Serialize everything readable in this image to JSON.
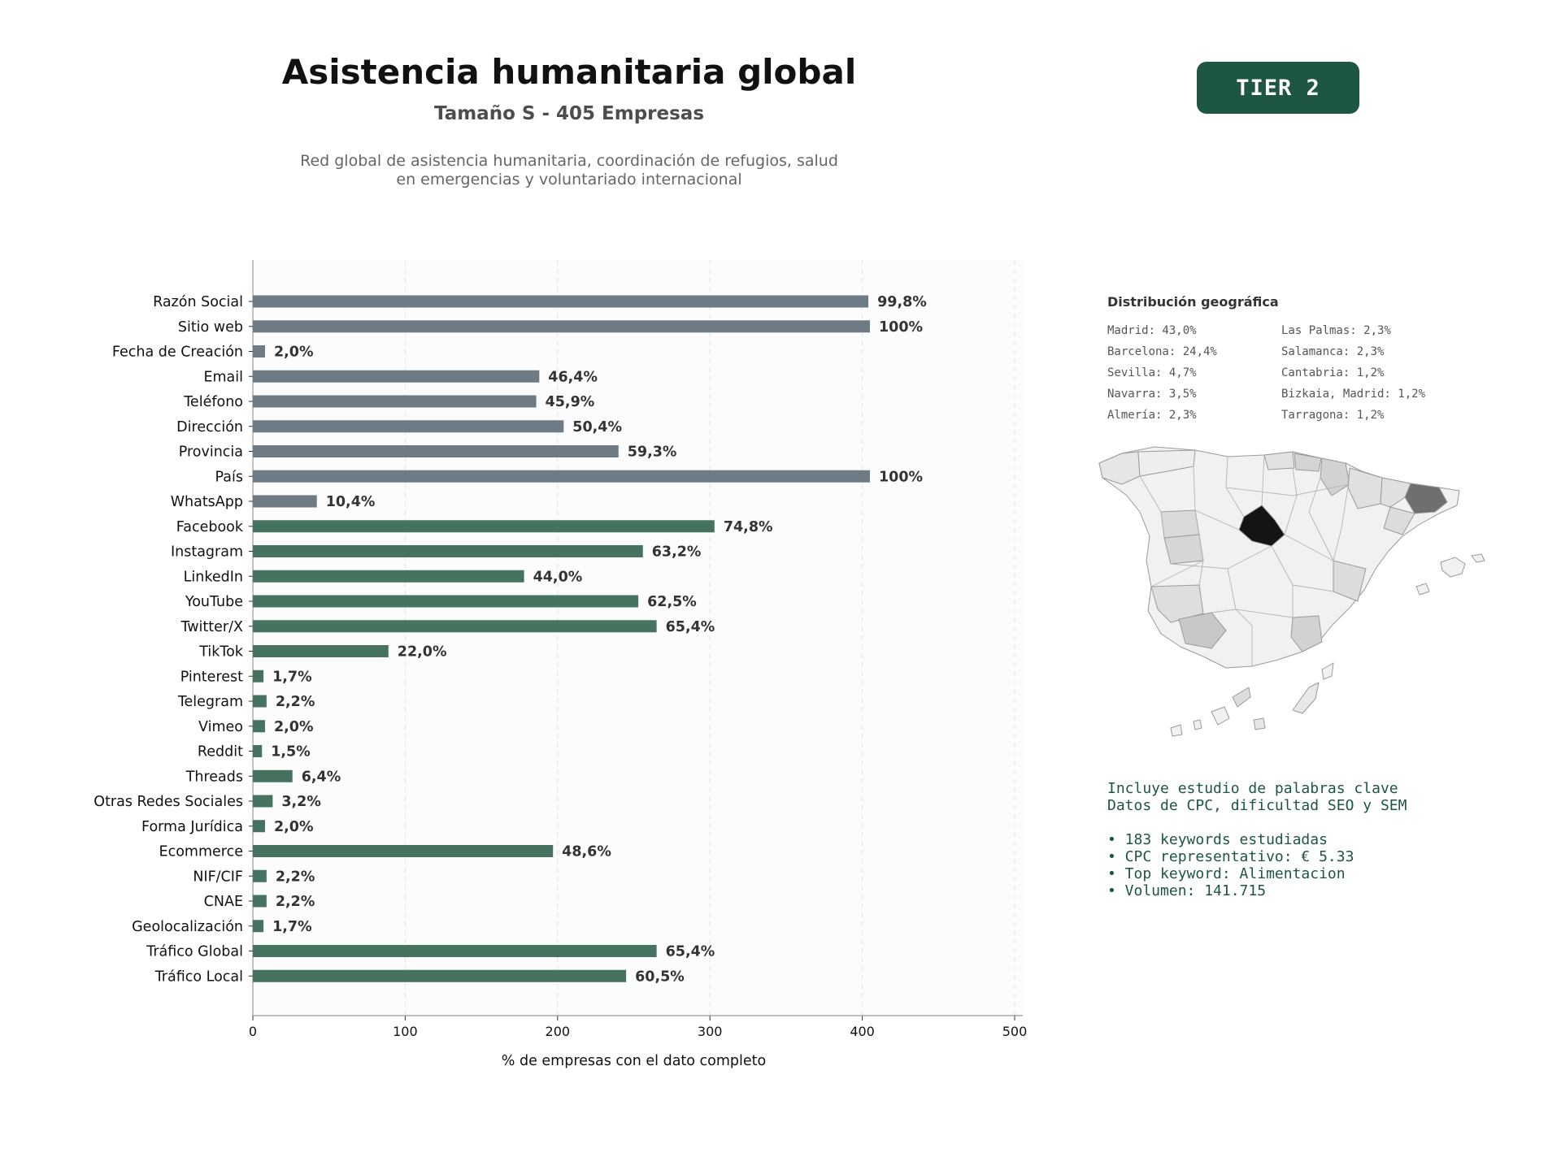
{
  "header": {
    "title": "Asistencia humanitaria global",
    "subtitle": "Tamaño S - 405 Empresas",
    "description_lines": [
      "Red global de asistencia humanitaria, coordinación de refugios, salud",
      "en emergencias y voluntariado internacional"
    ],
    "tier_label": "TIER 2"
  },
  "colors": {
    "gray_bar": "#6e7a84",
    "green_bar": "#46735f",
    "badge": "#1d5641",
    "keyword_text": "#1d5641"
  },
  "chart_data": {
    "type": "bar",
    "orientation": "horizontal",
    "xlabel": "% de empresas con el dato completo",
    "xlim": [
      0,
      500
    ],
    "xticks": [
      0,
      100,
      200,
      300,
      400,
      500
    ],
    "grid": "vertical dashed",
    "categories": [
      "Razón Social",
      "Sitio web",
      "Fecha de Creación",
      "Email",
      "Teléfono",
      "Dirección",
      "Provincia",
      "País",
      "WhatsApp",
      "Facebook",
      "Instagram",
      "LinkedIn",
      "YouTube",
      "Twitter/X",
      "TikTok",
      "Pinterest",
      "Telegram",
      "Vimeo",
      "Reddit",
      "Threads",
      "Otras Redes Sociales",
      "Forma Jurídica",
      "Ecommerce",
      "NIF/CIF",
      "CNAE",
      "Geolocalización",
      "Tráfico Global",
      "Tráfico Local"
    ],
    "values": [
      404,
      405,
      8,
      188,
      186,
      204,
      240,
      405,
      42,
      303,
      256,
      178,
      253,
      265,
      89,
      7,
      9,
      8,
      6,
      26,
      13,
      8,
      197,
      9,
      9,
      7,
      265,
      245
    ],
    "labels": [
      "99,8%",
      "100%",
      "2,0%",
      "46,4%",
      "45,9%",
      "50,4%",
      "59,3%",
      "100%",
      "10,4%",
      "74,8%",
      "63,2%",
      "44,0%",
      "62,5%",
      "65,4%",
      "22,0%",
      "1,7%",
      "2,2%",
      "2,0%",
      "1,5%",
      "6,4%",
      "3,2%",
      "2,0%",
      "48,6%",
      "2,2%",
      "2,2%",
      "1,7%",
      "65,4%",
      "60,5%"
    ],
    "bar_colors": [
      "gray",
      "gray",
      "gray",
      "gray",
      "gray",
      "gray",
      "gray",
      "gray",
      "gray",
      "green",
      "green",
      "green",
      "green",
      "green",
      "green",
      "green",
      "green",
      "green",
      "green",
      "green",
      "green",
      "green",
      "green",
      "green",
      "green",
      "green",
      "green",
      "green"
    ]
  },
  "geo": {
    "title": "Distribución geográfica",
    "items": [
      "Madrid: 43,0%",
      "Las Palmas: 2,3%",
      "Barcelona: 24,4%",
      "Salamanca: 2,3%",
      "Sevilla: 4,7%",
      "Cantabria: 1,2%",
      "Navarra: 3,5%",
      "Bizkaia, Madrid: 1,2%",
      "Almería: 2,3%",
      "Tarragona: 1,2%"
    ]
  },
  "keywords": {
    "line1": "Incluye estudio de palabras clave",
    "line2": "Datos de CPC, dificultad SEO y SEM",
    "bullets": [
      "• 183 keywords estudiadas",
      "• CPC representativo: € 5.33",
      "• Top keyword: Alimentacion",
      "• Volumen: 141.715"
    ]
  }
}
